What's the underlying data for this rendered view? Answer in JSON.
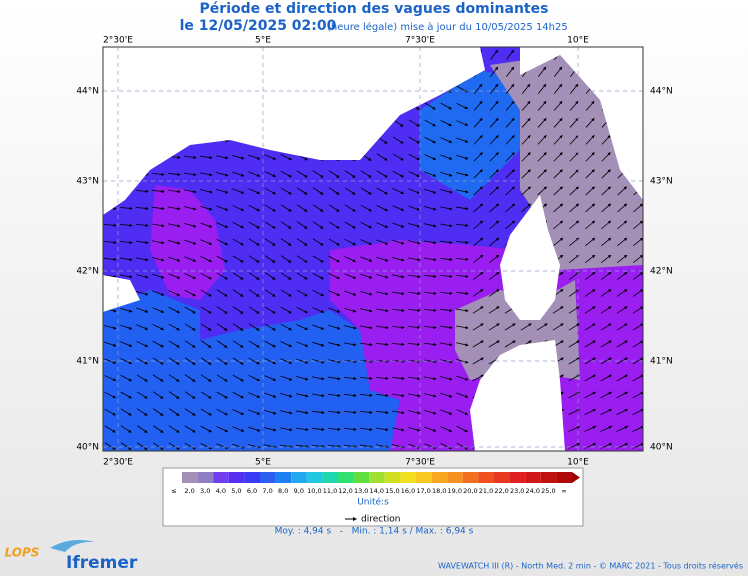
{
  "header": {
    "title": "Période et direction des vagues dominantes",
    "date": "le 12/05/2025 02:00",
    "update": "(heure légale) mise à jour du 10/05/2025 14h25"
  },
  "map": {
    "lon_labels": [
      "2°30'E",
      "5°E",
      "7°30'E",
      "10°E"
    ],
    "lat_labels": [
      "44°N",
      "43°N",
      "42°N",
      "41°N",
      "40°N"
    ]
  },
  "legend": {
    "labels": [
      "≤",
      "2,0",
      "3,0",
      "4,0",
      "5,0",
      "6,0",
      "7,0",
      "8,0",
      "9,0",
      "10,0",
      "11,0",
      "12,0",
      "13,0",
      "14,0",
      "15,0",
      "16,0",
      "17,0",
      "18,0",
      "19,0",
      "20,0",
      "21,0",
      "22,0",
      "23,0",
      "24,0",
      "25,0",
      "∞"
    ],
    "unit": "Unité:s",
    "direction": "direction"
  },
  "stats": "Moy. : 4,94 s   -   Min. : 1,14 s / Max. : 6,94 s",
  "footer": {
    "logo_lops": "LOPS",
    "logo_ifremer": "Ifremer",
    "credits": "WAVEWATCH III (R) - North Med. 2 min - © MARC 2021 - Tous droits réservés"
  }
}
